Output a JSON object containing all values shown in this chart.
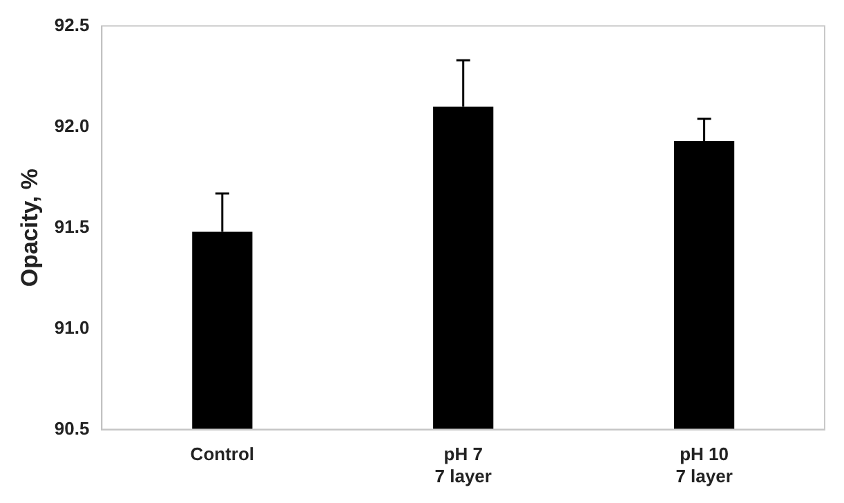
{
  "chart_data": {
    "type": "bar",
    "ylabel": "Opacity, %",
    "categories": [
      "Control",
      "pH 7\n7 layer",
      "pH 10\n7 layer"
    ],
    "values": [
      91.48,
      92.1,
      91.93
    ],
    "color": "#000000",
    "errors": [
      [
        91.48,
        91.67
      ],
      [
        92.1,
        92.33
      ],
      [
        91.93,
        92.04
      ]
    ],
    "ylim": [
      90.5,
      92.5
    ],
    "yticks": [
      {
        "value": 90.5,
        "label": "90.5"
      },
      {
        "value": 91,
        "label": "91.0"
      },
      {
        "value": 91.5,
        "label": "91.5"
      },
      {
        "value": 92,
        "label": "92.0"
      },
      {
        "value": 92.5,
        "label": "92.5"
      }
    ],
    "grid": false,
    "legend": false
  }
}
